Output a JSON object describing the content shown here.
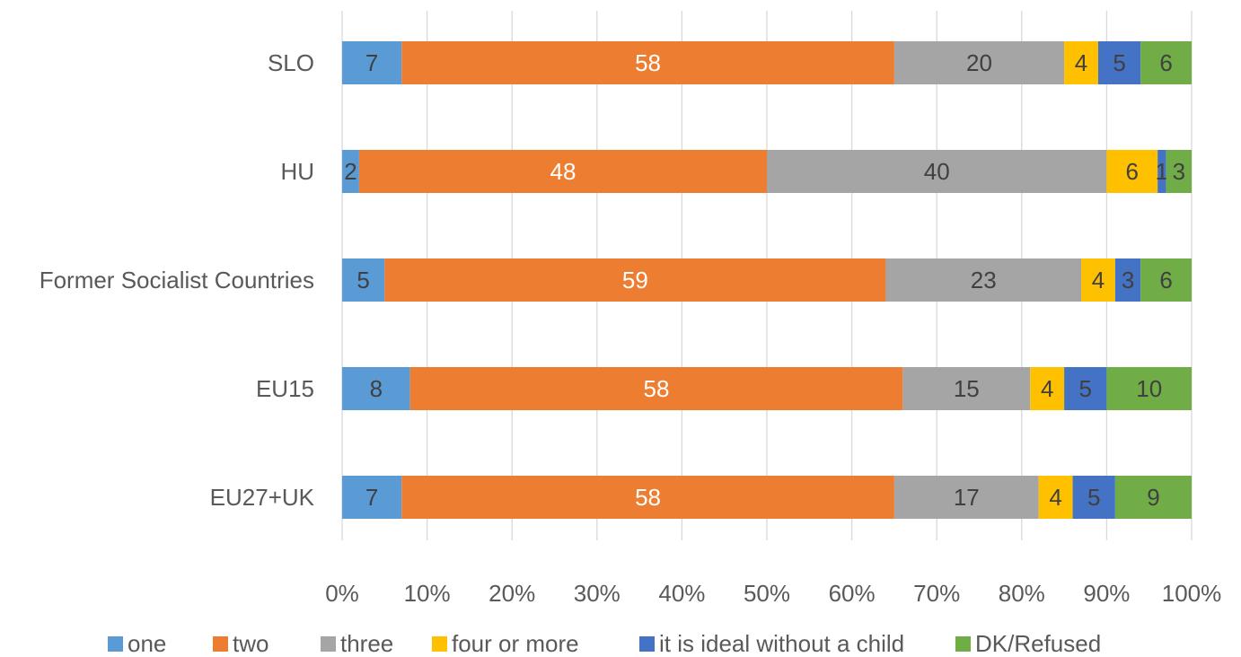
{
  "chart_data": {
    "type": "bar",
    "orientation": "horizontal",
    "stacked": true,
    "percent_stacked": true,
    "categories": [
      "SLO",
      "HU",
      "Former Socialist Countries",
      "EU15",
      "EU27+UK"
    ],
    "series": [
      {
        "name": "one",
        "color": "#5B9BD5",
        "label_color": "#404040",
        "values": [
          7,
          2,
          5,
          8,
          7
        ]
      },
      {
        "name": "two",
        "color": "#ED7D31",
        "label_color": "#FFFFFF",
        "values": [
          58,
          48,
          59,
          58,
          58
        ]
      },
      {
        "name": "three",
        "color": "#A5A5A5",
        "label_color": "#404040",
        "values": [
          20,
          40,
          23,
          15,
          17
        ]
      },
      {
        "name": "four or more",
        "color": "#FFC000",
        "label_color": "#404040",
        "values": [
          4,
          6,
          4,
          4,
          4
        ]
      },
      {
        "name": "it is ideal without a child",
        "color": "#4472C4",
        "label_color": "#404040",
        "values": [
          5,
          1,
          3,
          5,
          5
        ]
      },
      {
        "name": "DK/Refused",
        "color": "#70AD47",
        "label_color": "#404040",
        "values": [
          6,
          3,
          6,
          10,
          9
        ]
      }
    ],
    "x_ticks": [
      "0%",
      "10%",
      "20%",
      "30%",
      "40%",
      "50%",
      "60%",
      "70%",
      "80%",
      "90%",
      "100%"
    ],
    "xlim": [
      0,
      100
    ],
    "grid": true,
    "legend_position": "bottom",
    "title": "",
    "xlabel": "",
    "ylabel": ""
  }
}
